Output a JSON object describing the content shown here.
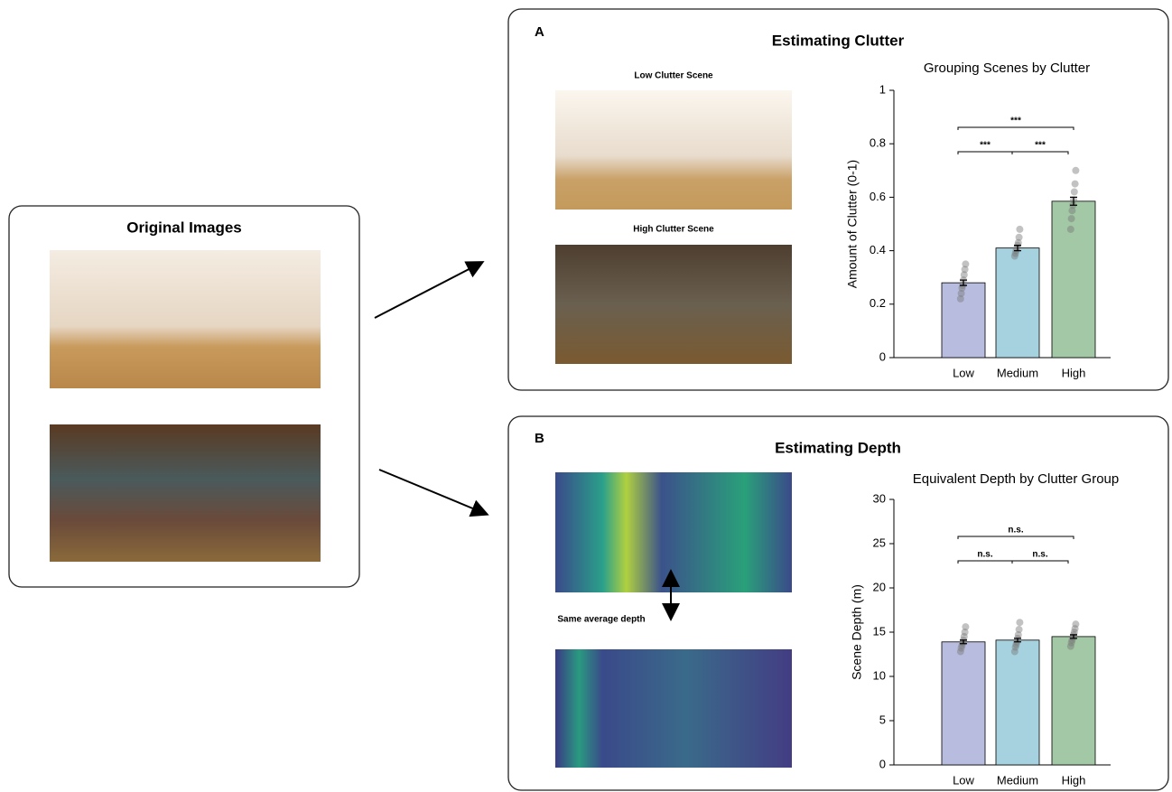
{
  "panels": {
    "original_title": "Original Images",
    "a_label": "A",
    "a_title": "Estimating Clutter",
    "low_caption": "Low Clutter Scene",
    "high_caption": "High Clutter Scene",
    "b_label": "B",
    "b_title": "Estimating Depth",
    "depth_note": "Same average depth"
  },
  "chart_data": [
    {
      "type": "bar",
      "title": "Grouping Scenes by Clutter",
      "y_label": "Amount of Clutter (0-1)",
      "categories": [
        "Low",
        "Medium",
        "High"
      ],
      "values": [
        0.28,
        0.41,
        0.585
      ],
      "errors": [
        0.01,
        0.01,
        0.015
      ],
      "colors": [
        "#b8bde0",
        "#a6d2df",
        "#a3c8a5"
      ],
      "points": [
        [
          0.22,
          0.24,
          0.26,
          0.27,
          0.29,
          0.31,
          0.33,
          0.35
        ],
        [
          0.38,
          0.39,
          0.4,
          0.41,
          0.42,
          0.43,
          0.45,
          0.48
        ],
        [
          0.48,
          0.52,
          0.55,
          0.57,
          0.59,
          0.62,
          0.65,
          0.7
        ]
      ],
      "ylim": [
        0,
        1
      ],
      "yticks": [
        0,
        0.2,
        0.4,
        0.6,
        0.8,
        1
      ],
      "comparisons": [
        {
          "pair": [
            "Low",
            "Medium"
          ],
          "label": "***"
        },
        {
          "pair": [
            "Medium",
            "High"
          ],
          "label": "***"
        },
        {
          "pair": [
            "Low",
            "High"
          ],
          "label": "***"
        }
      ]
    },
    {
      "type": "bar",
      "title": "Equivalent Depth by Clutter Group",
      "y_label": "Scene Depth (m)",
      "categories": [
        "Low",
        "Medium",
        "High"
      ],
      "values": [
        13.9,
        14.1,
        14.5
      ],
      "errors": [
        0.2,
        0.2,
        0.2
      ],
      "colors": [
        "#b8bde0",
        "#a6d2df",
        "#a3c8a5"
      ],
      "points": [
        [
          12.8,
          13.2,
          13.5,
          13.8,
          14.1,
          14.5,
          15.0,
          15.6
        ],
        [
          12.8,
          13.3,
          13.6,
          13.9,
          14.3,
          14.7,
          15.3,
          16.1
        ],
        [
          13.4,
          13.8,
          14.1,
          14.4,
          14.7,
          15.0,
          15.4,
          15.9
        ]
      ],
      "ylim": [
        0,
        30
      ],
      "yticks": [
        0,
        5,
        10,
        15,
        20,
        25,
        30
      ],
      "comparisons": [
        {
          "pair": [
            "Low",
            "Medium"
          ],
          "label": "n.s."
        },
        {
          "pair": [
            "Medium",
            "High"
          ],
          "label": "n.s."
        },
        {
          "pair": [
            "Low",
            "High"
          ],
          "label": "n.s."
        }
      ]
    }
  ]
}
